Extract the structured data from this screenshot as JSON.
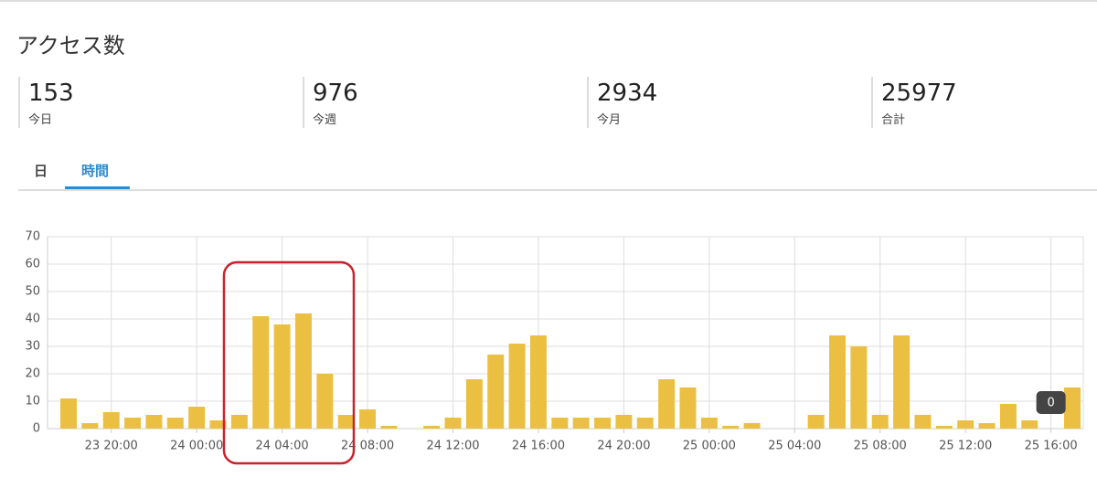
{
  "header": {
    "title": "アクセス数"
  },
  "stats": [
    {
      "value": "153",
      "label": "今日"
    },
    {
      "value": "976",
      "label": "今週"
    },
    {
      "value": "2934",
      "label": "今月"
    },
    {
      "value": "25977",
      "label": "合計"
    }
  ],
  "tabs": [
    "日",
    "時間"
  ],
  "chart_data": {
    "type": "bar",
    "color": "#ebc042",
    "categories": [
      null,
      null,
      "23 20:00",
      null,
      null,
      null,
      "24 00:00",
      null,
      null,
      null,
      "24 04:00",
      null,
      null,
      null,
      "24 08:00",
      null,
      null,
      null,
      "24 12:00",
      null,
      null,
      null,
      "24 16:00",
      null,
      null,
      null,
      "24 20:00",
      null,
      null,
      null,
      "25 00:00",
      null,
      null,
      null,
      "25 04:00",
      null,
      null,
      null,
      "25 08:00",
      null,
      null,
      null,
      "25 12:00",
      null,
      null,
      null,
      "25 16:00",
      null
    ],
    "values": [
      11,
      2,
      6,
      4,
      5,
      4,
      8,
      3,
      5,
      41,
      38,
      42,
      20,
      5,
      7,
      1,
      0,
      1,
      4,
      18,
      27,
      31,
      34,
      4,
      4,
      4,
      5,
      4,
      18,
      15,
      4,
      1,
      2,
      0,
      0,
      5,
      34,
      30,
      5,
      34,
      5,
      1,
      3,
      2,
      9,
      3,
      0,
      15
    ],
    "ylim": [
      0,
      70
    ],
    "yticks": [
      0,
      10,
      20,
      30,
      40,
      50,
      60,
      70
    ],
    "grid": true,
    "tooltip_index": 46
  }
}
